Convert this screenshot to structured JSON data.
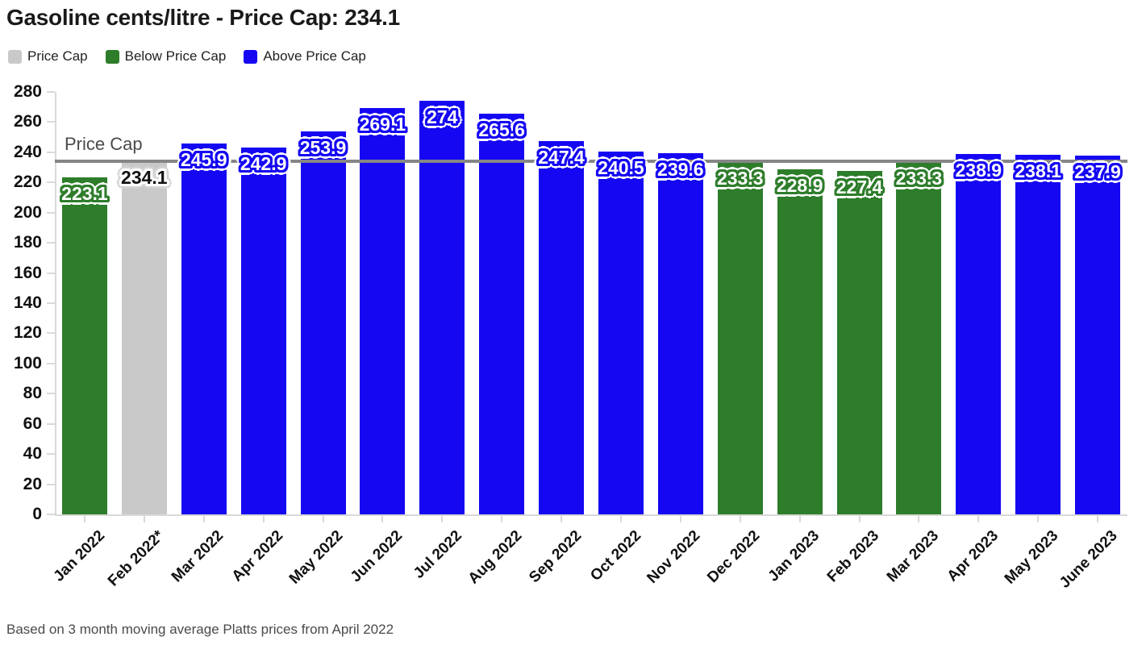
{
  "header": {
    "title": "Gasoline cents/litre - Price Cap: 234.1"
  },
  "legend": [
    {
      "label": "Price Cap",
      "color": "#c9c9c9"
    },
    {
      "label": "Below Price Cap",
      "color": "#2e7d2b"
    },
    {
      "label": "Above Price Cap",
      "color": "#1507f2"
    }
  ],
  "price_cap": {
    "value": 234.1,
    "label": "Price Cap"
  },
  "footnote": "Based on 3 month moving average Platts prices from April 2022",
  "colors": {
    "above": "#1507f2",
    "below": "#2e7d2b",
    "cap_bar": "#c9c9c9",
    "cap_line": "#868686",
    "axis": "#d9d9d9",
    "value_label_on_cap": "#111111"
  },
  "chart_data": {
    "type": "bar",
    "title": "Gasoline cents/litre - Price Cap: 234.1",
    "xlabel": "",
    "ylabel": "",
    "ylim": [
      0,
      280
    ],
    "yticks": [
      0,
      20,
      40,
      60,
      80,
      100,
      120,
      140,
      160,
      180,
      200,
      220,
      240,
      260,
      280
    ],
    "grid": false,
    "legend_position": "top-left",
    "categories": [
      "Jan 2022",
      "Feb 2022*",
      "Mar 2022",
      "Apr 2022",
      "May 2022",
      "Jun 2022",
      "Jul 2022",
      "Aug 2022",
      "Sep 2022",
      "Oct 2022",
      "Nov 2022",
      "Dec 2022",
      "Jan 2023",
      "Feb 2023",
      "Mar 2023",
      "Apr 2023",
      "May 2023",
      "June 2023"
    ],
    "values": [
      223.1,
      234.1,
      245.9,
      242.9,
      253.9,
      269.1,
      274,
      265.6,
      247.4,
      240.5,
      239.6,
      233.3,
      228.9,
      227.4,
      233.3,
      238.9,
      238.1,
      237.9
    ],
    "value_labels": [
      "223.1",
      "234.1",
      "245.9",
      "242.9",
      "253.9",
      "269.1",
      "274",
      "265.6",
      "247.4",
      "240.5",
      "239.6",
      "233.3",
      "228.9",
      "227.4",
      "233.3",
      "238.9",
      "238.1",
      "237.9"
    ],
    "statuses": [
      "below",
      "cap",
      "above",
      "above",
      "above",
      "above",
      "above",
      "above",
      "above",
      "above",
      "above",
      "below",
      "below",
      "below",
      "below",
      "above",
      "above",
      "above"
    ],
    "reference_line": {
      "value": 234.1,
      "label": "Price Cap"
    }
  }
}
